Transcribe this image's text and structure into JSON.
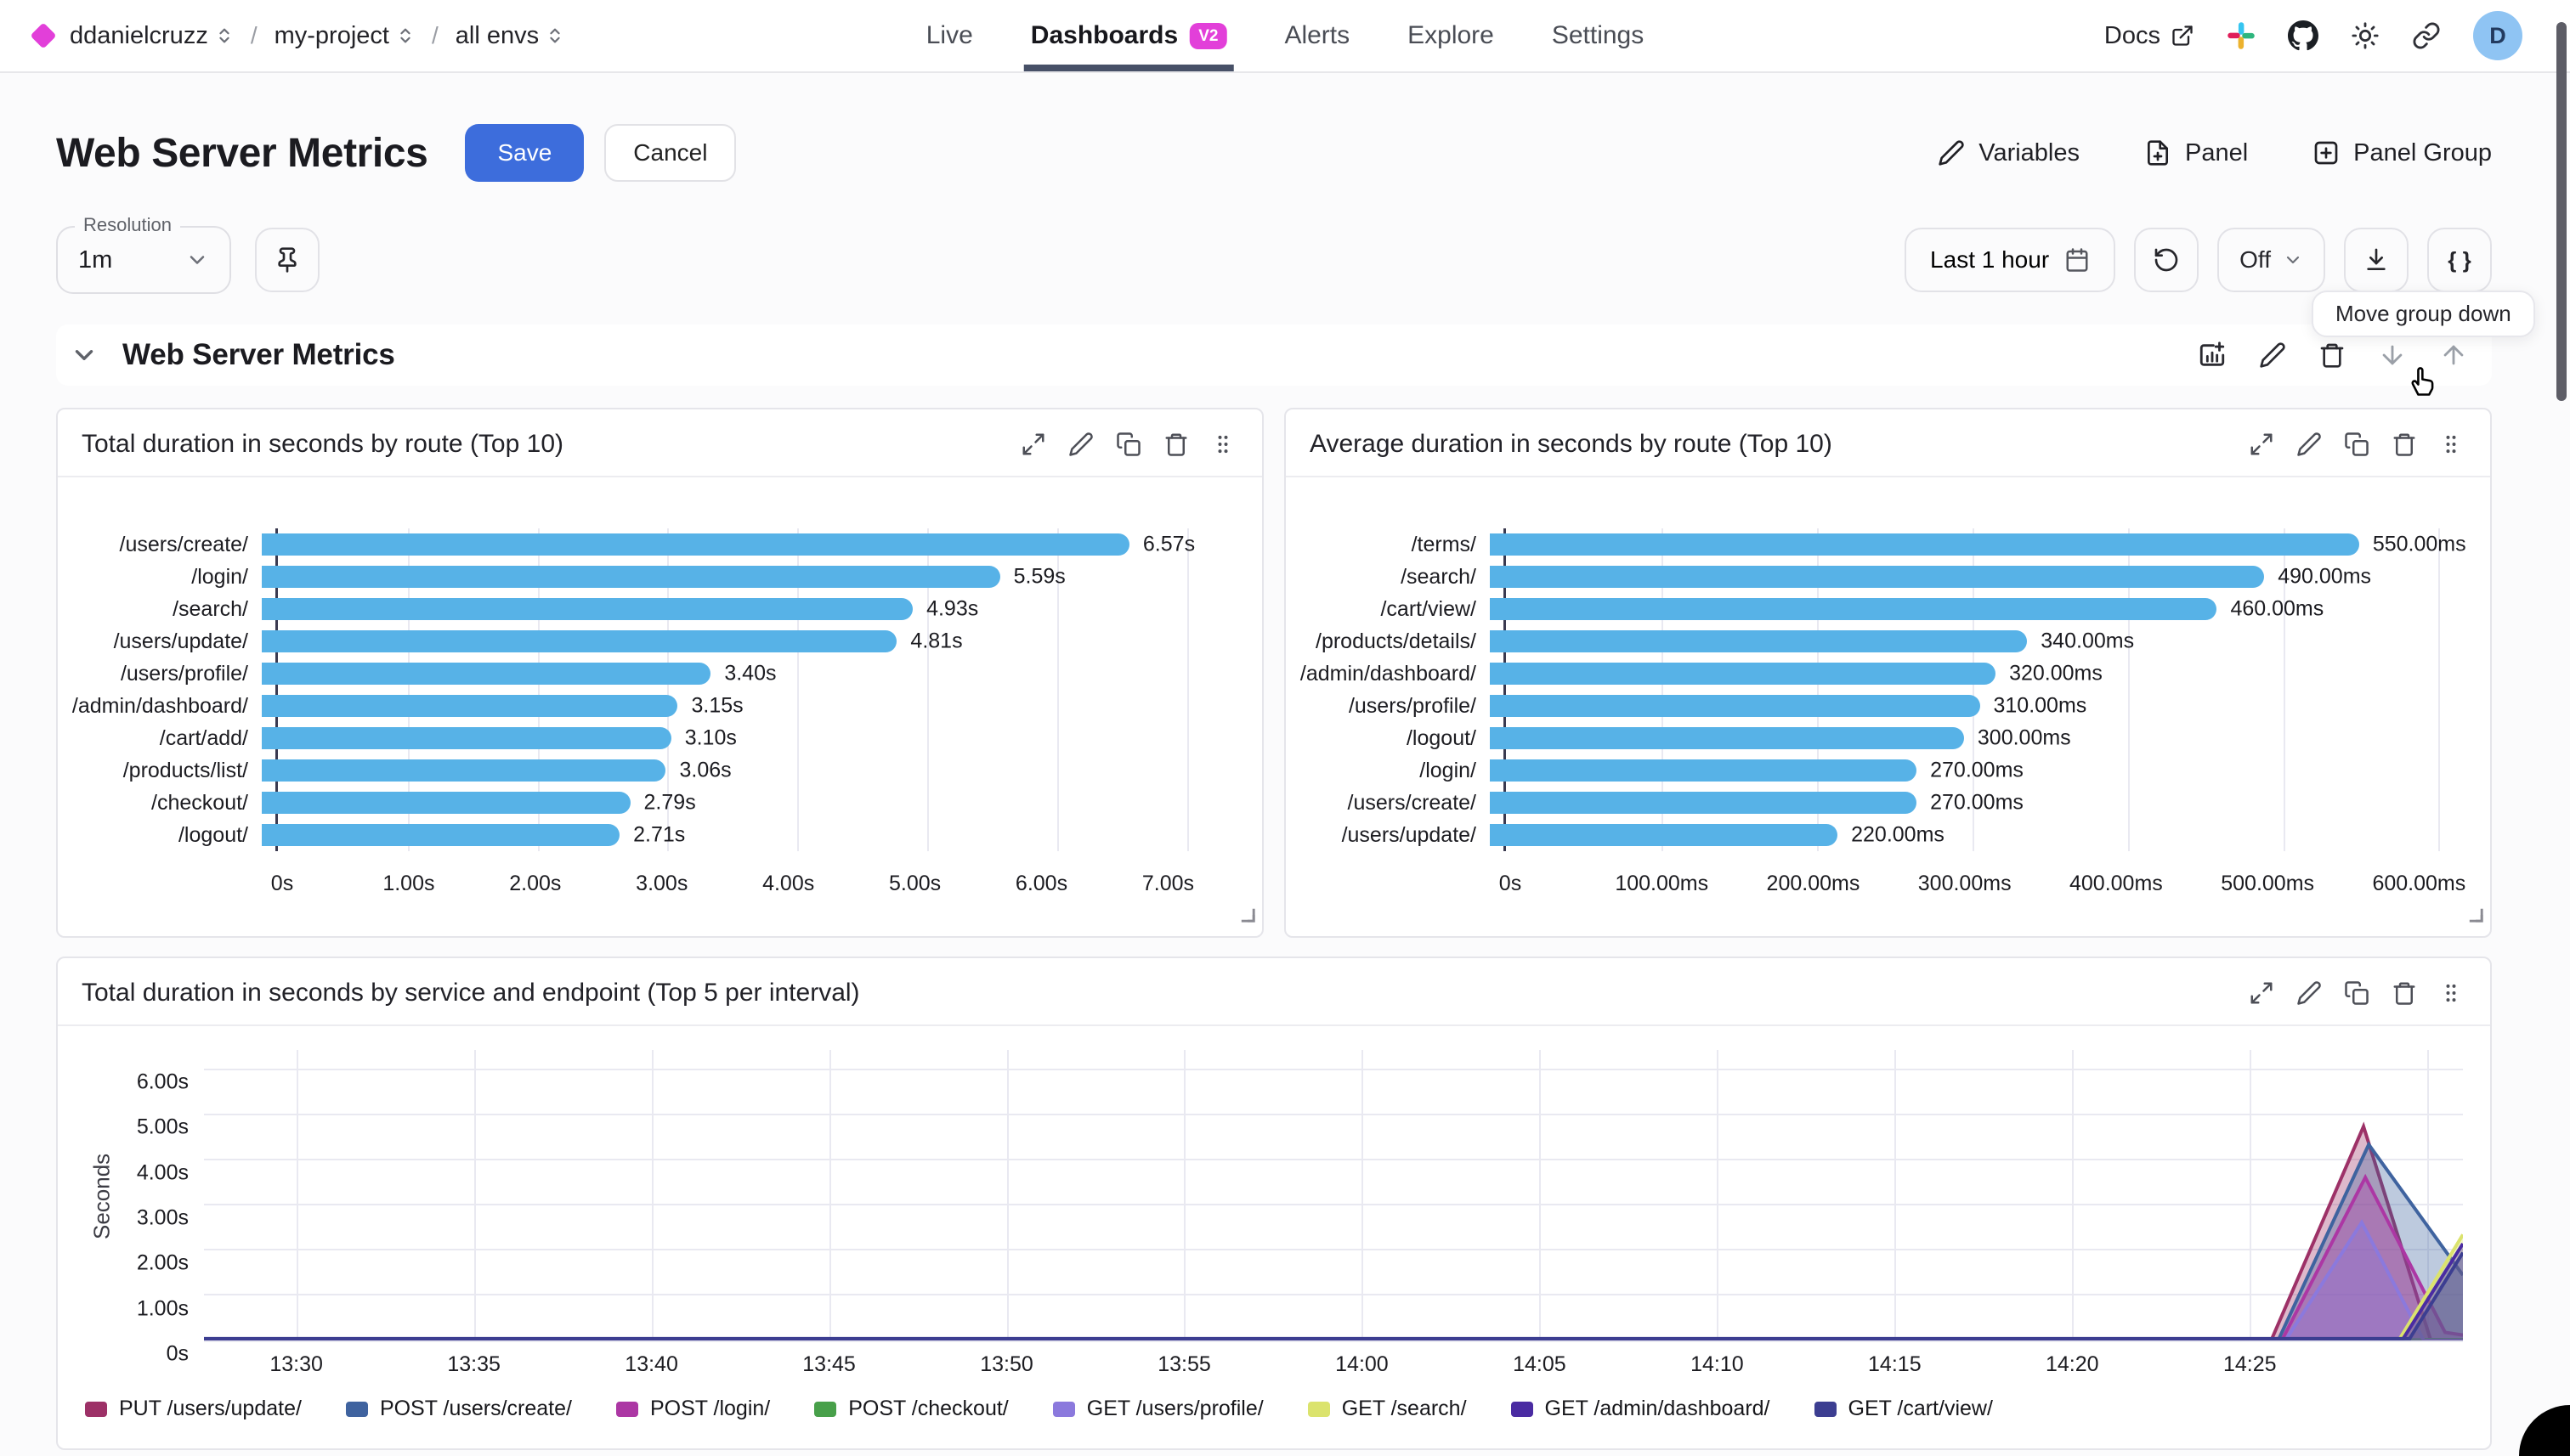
{
  "colors": {
    "accent_blue": "#3d6ddc",
    "brand_magenta": "#e23fd9",
    "bar_blue": "#57b2e7",
    "tab_underline": "#475067",
    "avatar_bg": "#8fc4f3"
  },
  "nav": {
    "breadcrumbs": [
      {
        "label": "ddanielcruzz"
      },
      {
        "label": "my-project"
      },
      {
        "label": "all envs"
      }
    ],
    "separator": "/",
    "tabs": [
      {
        "label": "Live",
        "active": false
      },
      {
        "label": "Dashboards",
        "active": true,
        "badge": "V2"
      },
      {
        "label": "Alerts",
        "active": false
      },
      {
        "label": "Explore",
        "active": false
      },
      {
        "label": "Settings",
        "active": false
      }
    ],
    "docs_label": "Docs",
    "avatar_initial": "D"
  },
  "header": {
    "title": "Web Server Metrics",
    "save_label": "Save",
    "cancel_label": "Cancel",
    "variables_label": "Variables",
    "panel_label": "Panel",
    "panel_group_label": "Panel Group"
  },
  "controls": {
    "resolution_label": "Resolution",
    "resolution_value": "1m",
    "time_range": "Last 1 hour",
    "refresh_value": "Off",
    "code_button": "{ }"
  },
  "tooltip_text": "Move group down",
  "group": {
    "title": "Web Server Metrics"
  },
  "chart_data": [
    {
      "type": "bar",
      "orientation": "horizontal",
      "title": "Total duration in seconds by route (Top 10)",
      "categories": [
        "/users/create/",
        "/login/",
        "/search/",
        "/users/update/",
        "/users/profile/",
        "/admin/dashboard/",
        "/cart/add/",
        "/products/list/",
        "/checkout/",
        "/logout/"
      ],
      "values": [
        6.57,
        5.59,
        4.93,
        4.81,
        3.4,
        3.15,
        3.1,
        3.06,
        2.79,
        2.71
      ],
      "value_labels": [
        "6.57s",
        "5.59s",
        "4.93s",
        "4.81s",
        "3.40s",
        "3.15s",
        "3.10s",
        "3.06s",
        "2.79s",
        "2.71s"
      ],
      "xtick_values": [
        0,
        1,
        2,
        3,
        4,
        5,
        6,
        7
      ],
      "xtick_labels": [
        "0s",
        "1.00s",
        "2.00s",
        "3.00s",
        "4.00s",
        "5.00s",
        "6.00s",
        "7.00s"
      ],
      "xmax": 7.42,
      "unit": "s",
      "grid": true
    },
    {
      "type": "bar",
      "orientation": "horizontal",
      "title": "Average duration in seconds by route (Top 10)",
      "categories": [
        "/terms/",
        "/search/",
        "/cart/view/",
        "/products/details/",
        "/admin/dashboard/",
        "/users/profile/",
        "/logout/",
        "/login/",
        "/users/create/",
        "/users/update/"
      ],
      "values": [
        550,
        490,
        460,
        340,
        320,
        310,
        300,
        270,
        270,
        220
      ],
      "value_labels": [
        "550.00ms",
        "490.00ms",
        "460.00ms",
        "340.00ms",
        "320.00ms",
        "310.00ms",
        "300.00ms",
        "270.00ms",
        "270.00ms",
        "220.00ms"
      ],
      "xtick_values": [
        0,
        100,
        200,
        300,
        400,
        500,
        600
      ],
      "xtick_labels": [
        "0s",
        "100.00ms",
        "200.00ms",
        "300.00ms",
        "400.00ms",
        "500.00ms",
        "600.00ms"
      ],
      "xmax": 620,
      "unit": "ms",
      "grid": true
    },
    {
      "type": "area",
      "title": "Total duration in seconds by service and endpoint (Top 5 per interval)",
      "ylabel": "Seconds",
      "ytick_values": [
        0,
        1,
        2,
        3,
        4,
        5,
        6
      ],
      "ytick_labels": [
        "0s",
        "1.00s",
        "2.00s",
        "3.00s",
        "4.00s",
        "5.00s",
        "6.00s"
      ],
      "ymax": 6.45,
      "x_domain_minutes": [
        -2.6,
        61
      ],
      "xtick_minutes": [
        0,
        5,
        10,
        15,
        20,
        25,
        30,
        35,
        40,
        45,
        50,
        55
      ],
      "xtick_labels": [
        "13:30",
        "13:35",
        "13:40",
        "13:45",
        "13:50",
        "13:55",
        "14:00",
        "14:05",
        "14:10",
        "14:15",
        "14:20",
        "14:25"
      ],
      "extra_gridline_minute": 60,
      "grid": true,
      "legend_position": "bottom",
      "series": [
        {
          "name": "PUT /users/update/",
          "color": "#9d3167",
          "points_min_sec": [
            [
              -2.6,
              0
            ],
            [
              55.6,
              0
            ],
            [
              58.2,
              4.75
            ],
            [
              60.1,
              0
            ],
            [
              61,
              0
            ]
          ]
        },
        {
          "name": "POST /users/create/",
          "color": "#3f639f",
          "points_min_sec": [
            [
              -2.6,
              0
            ],
            [
              55.8,
              0
            ],
            [
              58.35,
              4.35
            ],
            [
              61,
              1.45
            ]
          ]
        },
        {
          "name": "POST /login/",
          "color": "#ac37a4",
          "points_min_sec": [
            [
              -2.6,
              0
            ],
            [
              55.9,
              0
            ],
            [
              58.25,
              3.62
            ],
            [
              60.5,
              0.18
            ],
            [
              61,
              0.12
            ]
          ]
        },
        {
          "name": "POST /checkout/",
          "color": "#48a04a",
          "points_min_sec": [
            [
              -2.6,
              0.02
            ],
            [
              61,
              0.02
            ]
          ]
        },
        {
          "name": "GET /users/profile/",
          "color": "#8b79dd",
          "points_min_sec": [
            [
              -2.6,
              0
            ],
            [
              56,
              0
            ],
            [
              58.15,
              2.62
            ],
            [
              59.9,
              0
            ],
            [
              61,
              0
            ]
          ]
        },
        {
          "name": "GET /search/",
          "color": "#dbe36d",
          "points_min_sec": [
            [
              -2.6,
              0.01
            ],
            [
              59.2,
              0.01
            ],
            [
              61,
              2.35
            ]
          ]
        },
        {
          "name": "GET /admin/dashboard/",
          "color": "#4a2ba2",
          "points_min_sec": [
            [
              -2.6,
              0.02
            ],
            [
              59.3,
              0.02
            ],
            [
              61,
              2.15
            ]
          ]
        },
        {
          "name": "GET /cart/view/",
          "color": "#3c3e91",
          "points_min_sec": [
            [
              -2.6,
              0.04
            ],
            [
              59.5,
              0.04
            ],
            [
              61,
              1.95
            ]
          ]
        }
      ]
    }
  ]
}
